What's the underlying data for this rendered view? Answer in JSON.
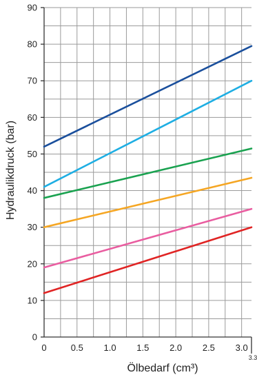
{
  "chart_data": {
    "type": "line",
    "xlabel": "Ölbedarf (cm³)",
    "ylabel": "Hydraulikdruck (bar)",
    "xlim": [
      0,
      3.15
    ],
    "ylim": [
      0,
      90
    ],
    "x_ticks": [
      0,
      0.5,
      1.0,
      1.5,
      2.0,
      2.5,
      3.0
    ],
    "x_tick_labels": [
      "0",
      "0.5",
      "1.0",
      "1.5",
      "2.0",
      "2.5",
      "3.0"
    ],
    "x_extra_tick": {
      "value": 3.15,
      "label": "3.3"
    },
    "y_ticks": [
      0,
      10,
      20,
      30,
      40,
      50,
      60,
      70,
      80,
      90
    ],
    "y_tick_labels": [
      "0",
      "10",
      "20",
      "30",
      "40",
      "50",
      "60",
      "70",
      "80",
      "90"
    ],
    "grid": true,
    "grid_minor": {
      "x_step": 0.25,
      "y_step": 5
    },
    "series": [
      {
        "color": "#1a4f9c",
        "x": [
          0,
          3.15
        ],
        "y": [
          52,
          79.5
        ]
      },
      {
        "color": "#1eaee3",
        "x": [
          0,
          3.15
        ],
        "y": [
          41,
          70
        ]
      },
      {
        "color": "#1aa250",
        "x": [
          0,
          3.15
        ],
        "y": [
          38,
          51.5
        ]
      },
      {
        "color": "#f5a623",
        "x": [
          0,
          3.15
        ],
        "y": [
          30,
          43.5
        ]
      },
      {
        "color": "#e95da0",
        "x": [
          0,
          3.15
        ],
        "y": [
          19,
          35
        ]
      },
      {
        "color": "#e02424",
        "x": [
          0,
          3.15
        ],
        "y": [
          12,
          30
        ]
      }
    ]
  }
}
